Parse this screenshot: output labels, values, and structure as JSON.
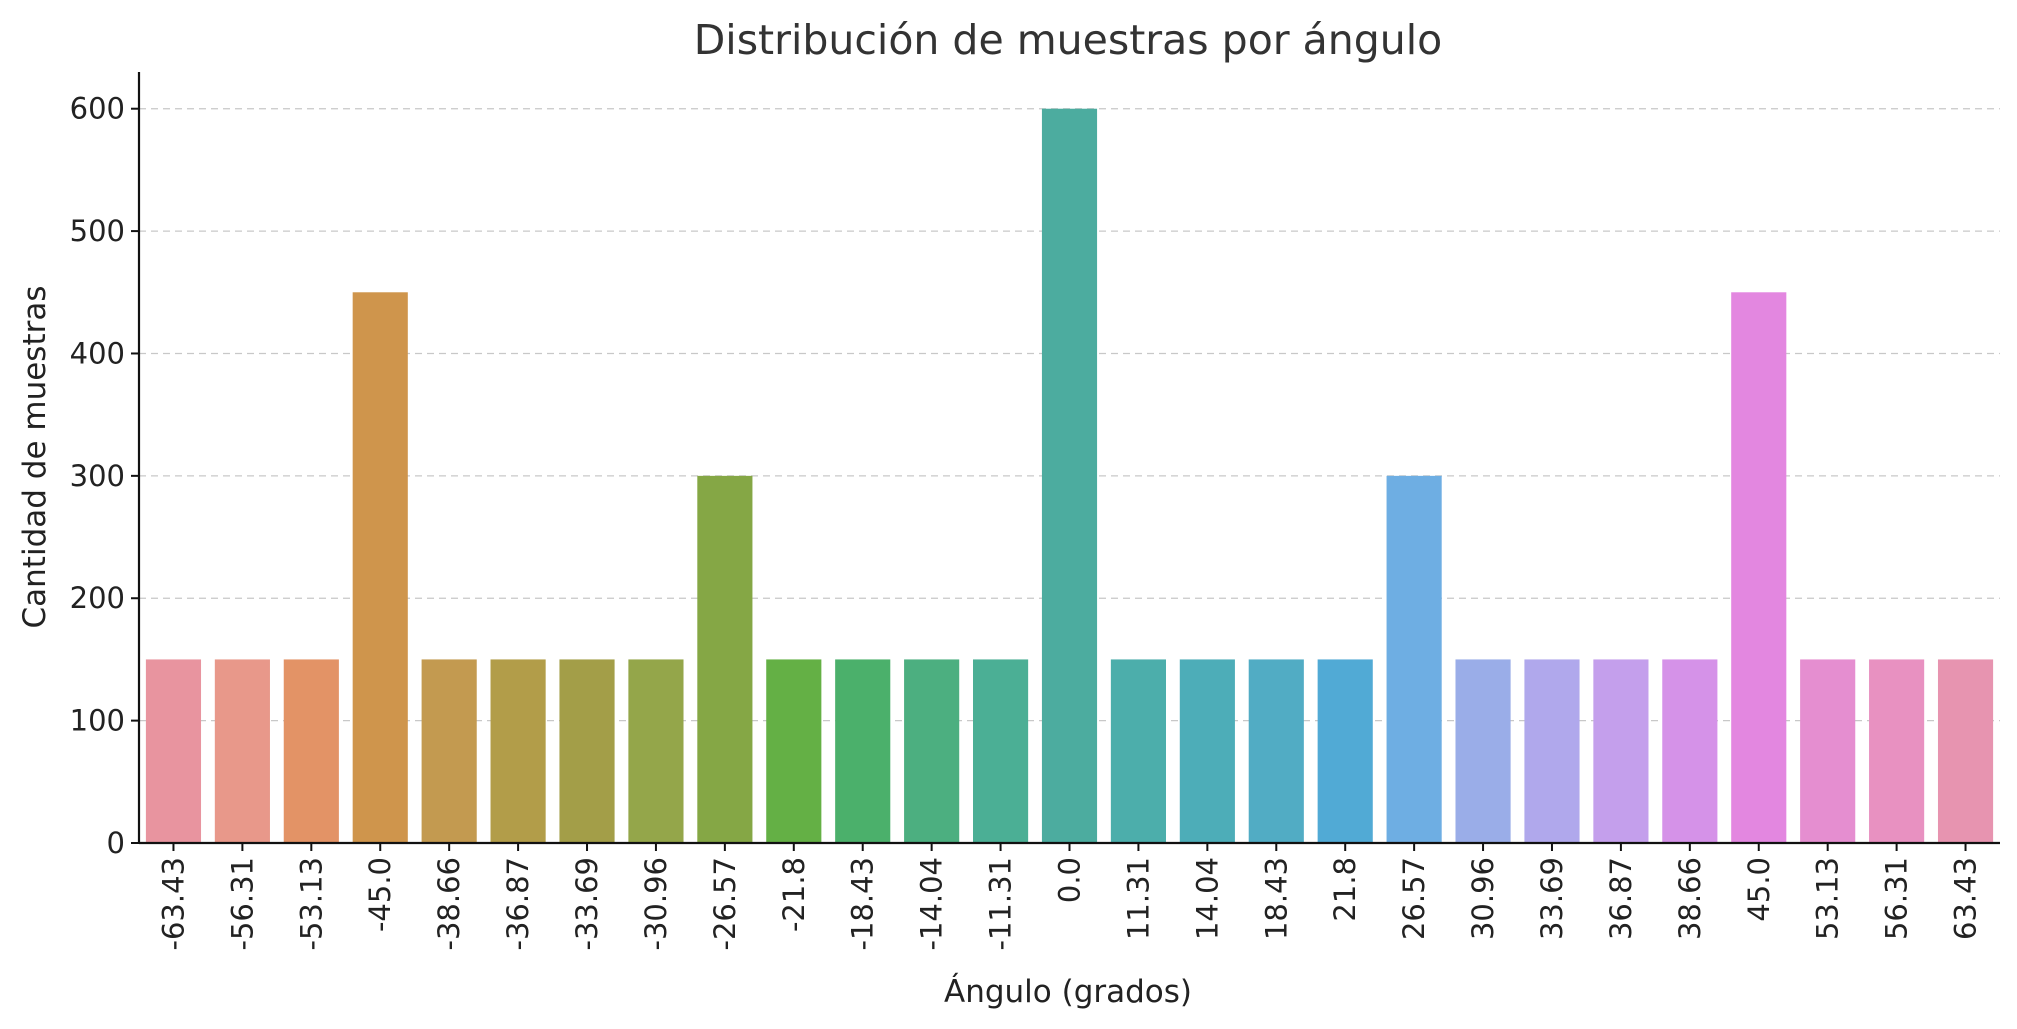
{
  "chart_data": {
    "type": "bar",
    "title": "Distribución de muestras por ángulo",
    "xlabel": "Ángulo (grados)",
    "ylabel": "Cantidad de muestras",
    "ylim": [
      0,
      630
    ],
    "yticks": [
      0,
      100,
      200,
      300,
      400,
      500,
      600
    ],
    "grid": "y-dashed",
    "categories": [
      "-63.43",
      "-56.31",
      "-53.13",
      "-45.0",
      "-38.66",
      "-36.87",
      "-33.69",
      "-30.96",
      "-26.57",
      "-21.8",
      "-18.43",
      "-14.04",
      "-11.31",
      "0.0",
      "11.31",
      "14.04",
      "18.43",
      "21.8",
      "26.57",
      "30.96",
      "33.69",
      "36.87",
      "38.66",
      "45.0",
      "53.13",
      "56.31",
      "63.43"
    ],
    "values": [
      150,
      150,
      150,
      450,
      150,
      150,
      150,
      150,
      300,
      150,
      150,
      150,
      150,
      600,
      150,
      150,
      150,
      150,
      300,
      150,
      150,
      150,
      150,
      450,
      150,
      150,
      150
    ],
    "colors": [
      "#e8949f",
      "#e8988a",
      "#e39366",
      "#cf954c",
      "#c39a50",
      "#b29d49",
      "#a39e48",
      "#94a64a",
      "#85a745",
      "#64b045",
      "#4bb06b",
      "#4caf80",
      "#4baf95",
      "#4cac9f",
      "#4caeab",
      "#4dadb8",
      "#51acc4",
      "#51aad5",
      "#6eaee3",
      "#9aade8",
      "#b0a8ec",
      "#c49fec",
      "#d592e8",
      "#e387e0",
      "#e58ed0",
      "#e891c1",
      "#e794b0"
    ]
  }
}
